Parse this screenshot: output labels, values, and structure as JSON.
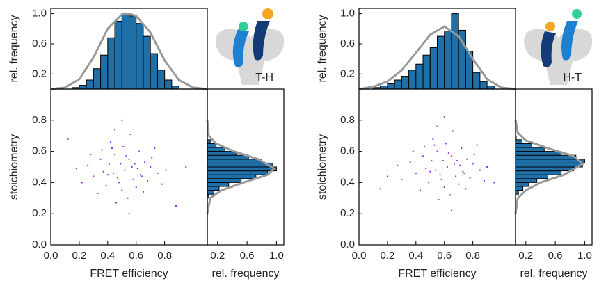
{
  "chart_data": [
    {
      "type": "histogram",
      "ylabel": "rel. frequency",
      "annotation": "T-H",
      "color": "#1f6fa8",
      "bins": [
        0.15,
        0.2,
        0.25,
        0.3,
        0.35,
        0.4,
        0.45,
        0.5,
        0.55,
        0.6,
        0.65,
        0.7,
        0.75,
        0.8,
        0.85,
        0.9
      ],
      "values": [
        0.02,
        0.05,
        0.12,
        0.27,
        0.45,
        0.68,
        0.9,
        1.0,
        0.97,
        0.87,
        0.7,
        0.47,
        0.25,
        0.12,
        0.04
      ],
      "fit": {
        "color": "#999999",
        "x": [
          0,
          0.1,
          0.2,
          0.3,
          0.4,
          0.5,
          0.55,
          0.6,
          0.7,
          0.8,
          0.9,
          1.0,
          1.1
        ],
        "values": [
          0.0,
          0.02,
          0.13,
          0.42,
          0.8,
          0.99,
          1.0,
          0.97,
          0.75,
          0.38,
          0.12,
          0.02,
          0.0
        ]
      },
      "xlim": [
        0,
        1.1
      ],
      "ylim": [
        0,
        1.07
      ],
      "yticks": [
        0.2,
        0.6,
        {
          "value": 1.0,
          "label": "1.0"
        }
      ]
    },
    {
      "type": "scatter",
      "xlabel": "FRET efficiency",
      "ylabel": "stoichiometry",
      "color": "#9a32e8",
      "x": [
        0.52,
        0.41,
        0.63,
        0.48,
        0.55,
        0.37,
        0.7,
        0.45,
        0.58,
        0.3,
        0.66,
        0.5,
        0.43,
        0.61,
        0.26,
        0.75,
        0.53,
        0.47,
        0.39,
        0.68,
        0.57,
        0.44,
        0.35,
        0.62,
        0.49,
        0.81,
        0.22,
        0.54,
        0.6,
        0.42,
        0.71,
        0.33,
        0.51,
        0.46,
        0.64,
        0.56,
        0.28,
        0.78,
        0.4,
        0.59,
        0.12,
        0.88,
        0.5,
        0.65,
        0.36,
        0.73,
        0.18,
        0.55,
        0.45,
        0.95
      ],
      "values": [
        0.48,
        0.52,
        0.45,
        0.4,
        0.55,
        0.47,
        0.5,
        0.58,
        0.42,
        0.44,
        0.53,
        0.35,
        0.62,
        0.49,
        0.51,
        0.46,
        0.57,
        0.43,
        0.38,
        0.41,
        0.5,
        0.46,
        0.55,
        0.6,
        0.52,
        0.48,
        0.4,
        0.3,
        0.37,
        0.66,
        0.56,
        0.33,
        0.63,
        0.27,
        0.44,
        0.71,
        0.58,
        0.39,
        0.45,
        0.52,
        0.68,
        0.25,
        0.8,
        0.34,
        0.61,
        0.62,
        0.49,
        0.2,
        0.74,
        0.5
      ],
      "xlim": [
        0,
        1.1
      ],
      "ylim": [
        0,
        1.0
      ],
      "xticks": [
        {
          "value": 0,
          "label": "0.0"
        },
        0.2,
        0.4,
        0.6,
        0.8
      ],
      "yticks": [
        {
          "value": 0,
          "label": "0.0"
        },
        0.2,
        0.4,
        0.6,
        0.8
      ]
    },
    {
      "type": "histogram",
      "orientation": "horizontal",
      "xlabel": "rel. frequency",
      "color": "#1f6fa8",
      "bins": [
        0.3,
        0.325,
        0.35,
        0.375,
        0.4,
        0.425,
        0.45,
        0.475,
        0.5,
        0.525,
        0.55,
        0.575,
        0.6,
        0.625,
        0.65,
        0.675,
        0.7
      ],
      "values": [
        0.08,
        0.15,
        0.22,
        0.35,
        0.52,
        0.72,
        0.88,
        1.0,
        0.95,
        0.8,
        0.62,
        0.45,
        0.3,
        0.18,
        0.1,
        0.06
      ],
      "fit": {
        "color": "#999999",
        "x": [
          0.2,
          0.3,
          0.35,
          0.4,
          0.45,
          0.49,
          0.55,
          0.6,
          0.65,
          0.7,
          0.8
        ],
        "values": [
          0.06,
          0.1,
          0.25,
          0.55,
          0.88,
          0.97,
          0.75,
          0.42,
          0.18,
          0.08,
          0.06
        ]
      },
      "xlim": [
        0.06,
        1.1
      ],
      "ylim": [
        0,
        1.0
      ],
      "xticks": [
        0.2,
        0.6,
        {
          "value": 1.0,
          "label": "1.0"
        }
      ]
    },
    {
      "type": "histogram",
      "ylabel": "rel. frequency",
      "annotation": "H-T",
      "color": "#1f6fa8",
      "bins": [
        0.1,
        0.15,
        0.2,
        0.25,
        0.3,
        0.35,
        0.4,
        0.45,
        0.5,
        0.55,
        0.6,
        0.65,
        0.7,
        0.75,
        0.8,
        0.85,
        0.9,
        0.95
      ],
      "values": [
        0.02,
        0.04,
        0.07,
        0.12,
        0.17,
        0.25,
        0.33,
        0.45,
        0.55,
        0.7,
        0.77,
        1.0,
        0.78,
        0.5,
        0.22,
        0.1,
        0.04
      ],
      "fit": {
        "color": "#999999",
        "x": [
          0,
          0.1,
          0.2,
          0.3,
          0.4,
          0.5,
          0.6,
          0.7,
          0.8,
          0.9,
          1.0,
          1.1
        ],
        "values": [
          0.0,
          0.03,
          0.1,
          0.25,
          0.48,
          0.72,
          0.83,
          0.7,
          0.4,
          0.13,
          0.02,
          0.0
        ]
      },
      "xlim": [
        0,
        1.1
      ],
      "ylim": [
        0,
        1.07
      ],
      "yticks": [
        0.2,
        0.6,
        {
          "value": 1.0,
          "label": "1.0"
        }
      ]
    },
    {
      "type": "scatter",
      "xlabel": "FRET efficiency",
      "ylabel": "stoichiometry",
      "color": "#9a32e8",
      "x": [
        0.62,
        0.51,
        0.73,
        0.58,
        0.65,
        0.47,
        0.8,
        0.55,
        0.68,
        0.4,
        0.76,
        0.6,
        0.53,
        0.71,
        0.36,
        0.85,
        0.63,
        0.57,
        0.49,
        0.78,
        0.67,
        0.54,
        0.45,
        0.72,
        0.59,
        0.9,
        0.3,
        0.64,
        0.7,
        0.52,
        0.81,
        0.43,
        0.61,
        0.56,
        0.74,
        0.66,
        0.38,
        0.88,
        0.5,
        0.69,
        0.2,
        0.95,
        0.6,
        0.75,
        0.46,
        0.83,
        0.27,
        0.65,
        0.55,
        0.15
      ],
      "values": [
        0.5,
        0.54,
        0.47,
        0.42,
        0.57,
        0.49,
        0.52,
        0.6,
        0.44,
        0.46,
        0.55,
        0.37,
        0.64,
        0.51,
        0.53,
        0.48,
        0.59,
        0.45,
        0.4,
        0.43,
        0.52,
        0.48,
        0.57,
        0.62,
        0.54,
        0.5,
        0.42,
        0.32,
        0.39,
        0.68,
        0.58,
        0.35,
        0.65,
        0.29,
        0.46,
        0.73,
        0.6,
        0.41,
        0.47,
        0.54,
        0.44,
        0.4,
        0.82,
        0.36,
        0.63,
        0.64,
        0.51,
        0.22,
        0.76,
        0.36
      ],
      "xlim": [
        0,
        1.1
      ],
      "ylim": [
        0,
        1.0
      ],
      "xticks": [
        {
          "value": 0,
          "label": "0.0"
        },
        0.2,
        0.4,
        0.6,
        0.8
      ],
      "yticks": [
        {
          "value": 0,
          "label": "0.0"
        },
        0.2,
        0.4,
        0.6,
        0.8
      ]
    },
    {
      "type": "histogram",
      "orientation": "horizontal",
      "xlabel": "rel. frequency",
      "color": "#1f6fa8",
      "bins": [
        0.3,
        0.325,
        0.35,
        0.375,
        0.4,
        0.425,
        0.45,
        0.475,
        0.5,
        0.525,
        0.55,
        0.575,
        0.6,
        0.625,
        0.65,
        0.675,
        0.7
      ],
      "values": [
        0.05,
        0.1,
        0.16,
        0.24,
        0.35,
        0.5,
        0.68,
        0.85,
        0.97,
        1.0,
        0.88,
        0.68,
        0.45,
        0.28,
        0.15,
        0.07
      ],
      "fit": {
        "color": "#999999",
        "x": [
          0.2,
          0.3,
          0.35,
          0.4,
          0.45,
          0.52,
          0.57,
          0.62,
          0.67,
          0.72,
          0.8
        ],
        "values": [
          0.06,
          0.09,
          0.2,
          0.4,
          0.72,
          0.97,
          0.85,
          0.5,
          0.2,
          0.09,
          0.06
        ]
      },
      "xlim": [
        0.06,
        1.1
      ],
      "ylim": [
        0,
        1.0
      ],
      "xticks": [
        0.2,
        0.6,
        {
          "value": 1.0,
          "label": "1.0"
        }
      ]
    }
  ]
}
